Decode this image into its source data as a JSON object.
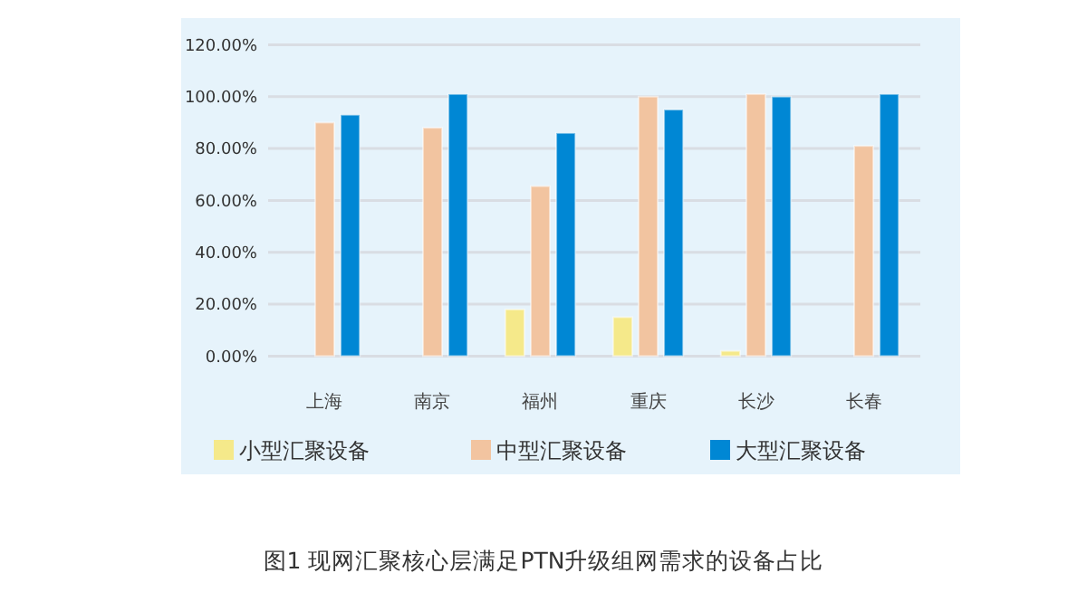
{
  "chart_data": {
    "type": "bar",
    "title": "图1  现网汇聚核心层满足PTN升级组网需求的设备占比",
    "categories": [
      "上海",
      "南京",
      "福州",
      "重庆",
      "长沙",
      "长春"
    ],
    "series": [
      {
        "name": "小型汇聚设备",
        "color": "#f5e98a",
        "values": [
          0,
          0,
          18,
          15,
          2,
          0
        ]
      },
      {
        "name": "中型汇聚设备",
        "color": "#f2c4a0",
        "values": [
          90,
          88,
          65.5,
          100,
          101,
          81
        ]
      },
      {
        "name": "大型汇聚设备",
        "color": "#0087d4",
        "values": [
          93,
          101,
          86,
          95,
          100,
          101
        ]
      }
    ],
    "ylim": [
      0,
      120
    ],
    "yticks": [
      {
        "value": 0,
        "label": "0.00%"
      },
      {
        "value": 20,
        "label": "20.00%"
      },
      {
        "value": 40,
        "label": "40.00%"
      },
      {
        "value": 60,
        "label": "60.00%"
      },
      {
        "value": 80,
        "label": "80.00%"
      },
      {
        "value": 100,
        "label": "100.00%"
      },
      {
        "value": 120,
        "label": "120.00%"
      }
    ],
    "grid": "y",
    "legend": "bottom"
  }
}
